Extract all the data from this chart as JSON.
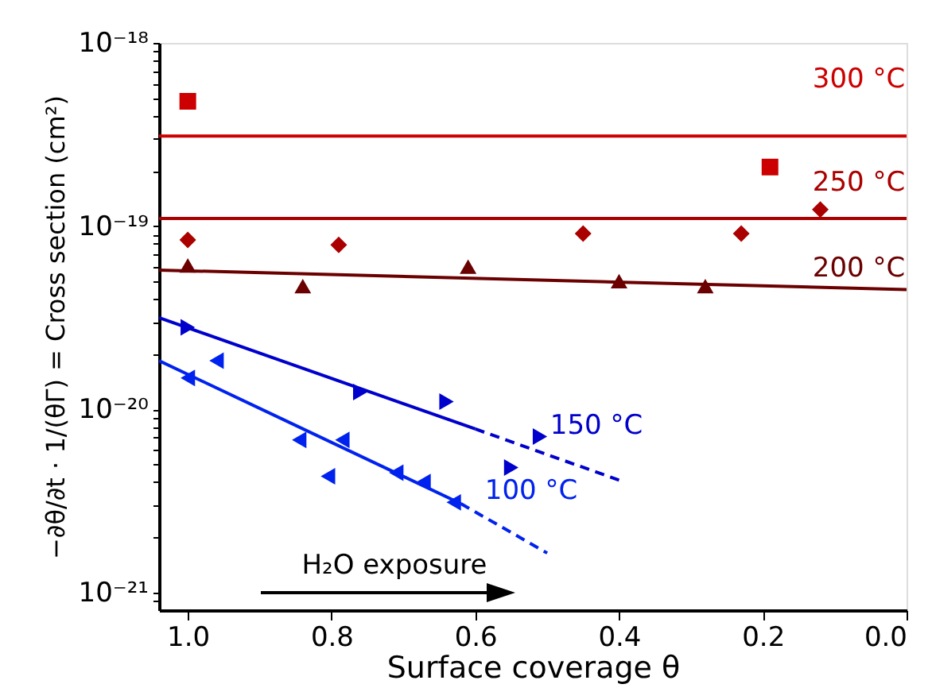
{
  "chart_data": {
    "type": "scatter",
    "xlabel": "Surface coverage θ",
    "ylabel": "−∂θ/∂t · 1/(θΓ) = Cross section (cm²)",
    "log": "y",
    "grid": false,
    "xlim": [
      1.04,
      0.0
    ],
    "xticks": [
      {
        "value": 1.0,
        "label": "1.0"
      },
      0.8,
      0.6,
      0.4,
      0.2,
      {
        "value": 0.0,
        "label": "0.0"
      }
    ],
    "ylim": [
      8e-22,
      1e-18
    ],
    "yticks": [
      {
        "value": 9e-22,
        "label": null
      },
      {
        "value": 1e-21,
        "label": "10⁻²¹"
      },
      {
        "value": 2e-21,
        "label": null
      },
      {
        "value": 3e-21,
        "label": null
      },
      {
        "value": 4e-21,
        "label": null
      },
      {
        "value": 5e-21,
        "label": null
      },
      {
        "value": 6e-21,
        "label": null
      },
      {
        "value": 7e-21,
        "label": null
      },
      {
        "value": 8e-21,
        "label": null
      },
      {
        "value": 9e-21,
        "label": null
      },
      {
        "value": 1e-20,
        "label": "10⁻²⁰"
      },
      {
        "value": 2e-20,
        "label": null
      },
      {
        "value": 3e-20,
        "label": null
      },
      {
        "value": 4e-20,
        "label": null
      },
      {
        "value": 5e-20,
        "label": null
      },
      {
        "value": 6e-20,
        "label": null
      },
      {
        "value": 7e-20,
        "label": null
      },
      {
        "value": 8e-20,
        "label": null
      },
      {
        "value": 9e-20,
        "label": null
      },
      {
        "value": 1e-19,
        "label": "10⁻¹⁹"
      },
      {
        "value": 2e-19,
        "label": null
      },
      {
        "value": 3e-19,
        "label": null
      },
      {
        "value": 4e-19,
        "label": null
      },
      {
        "value": 5e-19,
        "label": null
      },
      {
        "value": 6e-19,
        "label": null
      },
      {
        "value": 7e-19,
        "label": null
      },
      {
        "value": 8e-19,
        "label": null
      },
      {
        "value": 9e-19,
        "label": null
      },
      {
        "value": 1e-18,
        "label": "10⁻¹⁸"
      }
    ],
    "series": [
      {
        "type": "line",
        "color": "#cc0000",
        "line_style": "solid",
        "marker": "none",
        "x": [
          1.04,
          0.0
        ],
        "values": [
          3.1e-19,
          3.1e-19
        ]
      },
      {
        "type": "line",
        "color": "#aa0000",
        "line_style": "solid",
        "marker": "none",
        "x": [
          1.04,
          0.0
        ],
        "values": [
          1.1e-19,
          1.1e-19
        ]
      },
      {
        "type": "line",
        "color": "#6b0000",
        "line_style": "solid",
        "marker": "none",
        "x": [
          1.04,
          0.0
        ],
        "values": [
          5.75e-20,
          4.5e-20
        ]
      },
      {
        "type": "line",
        "color": "#0000cc",
        "line_style": "solid",
        "marker": "none",
        "x": [
          1.04,
          0.6
        ],
        "values": [
          3.16e-20,
          7.8e-21
        ]
      },
      {
        "type": "line",
        "color": "#0000cc",
        "line_style": "dashed",
        "marker": "none",
        "x": [
          0.6,
          0.4
        ],
        "values": [
          7.8e-21,
          4.1e-21
        ]
      },
      {
        "type": "line",
        "color": "#0022ee",
        "line_style": "solid",
        "marker": "none",
        "x": [
          1.04,
          0.62
        ],
        "values": [
          1.84e-20,
          3.05e-21
        ]
      },
      {
        "type": "line",
        "color": "#0022ee",
        "line_style": "dashed",
        "marker": "none",
        "x": [
          0.62,
          0.5
        ],
        "values": [
          3.05e-21,
          1.64e-21
        ]
      },
      {
        "name": "300 °C",
        "color": "#cc0000",
        "marker": "square",
        "x": [
          1.0,
          0.19
        ],
        "values": [
          4.8e-19,
          2.1e-19
        ]
      },
      {
        "name": "250 °C",
        "color": "#aa0000",
        "marker": "diamond",
        "x": [
          1.0,
          0.79,
          0.45,
          0.23,
          0.12
        ],
        "values": [
          8.4e-20,
          7.9e-20,
          9.1e-20,
          9.1e-20,
          1.23e-19
        ]
      },
      {
        "name": "200 °C",
        "color": "#6b0000",
        "marker": "triangle",
        "x": [
          1.0,
          0.84,
          0.61,
          0.4,
          0.28
        ],
        "values": [
          6.1e-20,
          4.7e-20,
          6e-20,
          5e-20,
          4.7e-20
        ]
      },
      {
        "name": "150 °C",
        "color": "#0000cc",
        "marker": "triangle-right",
        "x": [
          1.0,
          0.76,
          0.64,
          0.51,
          0.55
        ],
        "values": [
          2.8e-20,
          1.24e-20,
          1.1e-20,
          7.1e-21,
          4.8e-21
        ]
      },
      {
        "name": "100 °C",
        "color": "#0022ee",
        "marker": "triangle-left",
        "x": [
          1.0,
          0.96,
          0.845,
          0.785,
          0.805,
          0.71,
          0.672,
          0.63
        ],
        "values": [
          1.48e-20,
          1.84e-20,
          6.8e-21,
          6.8e-21,
          4.3e-21,
          4.5e-21,
          4e-21,
          3.1e-21
        ]
      }
    ],
    "annotations": [
      "H₂O exposure"
    ]
  }
}
